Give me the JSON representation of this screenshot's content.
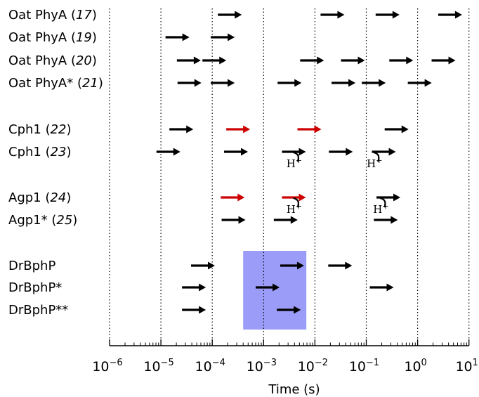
{
  "chart_data": {
    "type": "scatter",
    "xlabel": "Time (s)",
    "xscale": "log",
    "xlim": [
      1e-06,
      10
    ],
    "x_tick_labels": [
      {
        "base": "10",
        "exp": "−6"
      },
      {
        "base": "10",
        "exp": "−5"
      },
      {
        "base": "10",
        "exp": "−4"
      },
      {
        "base": "10",
        "exp": "−3"
      },
      {
        "base": "10",
        "exp": "−2"
      },
      {
        "base": "10",
        "exp": "−1"
      },
      {
        "base": "10",
        "exp": "0"
      },
      {
        "base": "10",
        "exp": "1"
      }
    ],
    "grid": "vertical dotted at decades",
    "colors": {
      "black": "#000000",
      "red": "#cc0000",
      "shade": "#9a9cf7"
    },
    "rows": [
      {
        "name": "Oat PhyA",
        "ref": "17",
        "arrows": [
          {
            "x": 0.00022,
            "color": "black"
          },
          {
            "x": 0.022,
            "color": "black"
          },
          {
            "x": 0.26,
            "color": "black"
          },
          {
            "x": 4.3,
            "color": "black"
          }
        ]
      },
      {
        "name": "Oat PhyA",
        "ref": "19",
        "arrows": [
          {
            "x": 2.1e-05,
            "color": "black"
          },
          {
            "x": 0.00016,
            "color": "black"
          }
        ]
      },
      {
        "name": "Oat PhyA",
        "ref": "20",
        "arrows": [
          {
            "x": 3.5e-05,
            "color": "black"
          },
          {
            "x": 0.00011,
            "color": "black"
          },
          {
            "x": 0.0088,
            "color": "black"
          },
          {
            "x": 0.055,
            "color": "black"
          },
          {
            "x": 0.48,
            "color": "black"
          },
          {
            "x": 3.2,
            "color": "black"
          }
        ]
      },
      {
        "name": "Oat PhyA*",
        "ref": "21",
        "arrows": [
          {
            "x": 3.6e-05,
            "color": "black"
          },
          {
            "x": 0.00016,
            "color": "black"
          },
          {
            "x": 0.0032,
            "color": "black"
          },
          {
            "x": 0.036,
            "color": "black"
          },
          {
            "x": 0.14,
            "color": "black"
          },
          {
            "x": 1.1,
            "color": "black"
          }
        ]
      },
      {
        "name": "Cph1",
        "ref": "22",
        "arrows": [
          {
            "x": 2.5e-05,
            "color": "black"
          },
          {
            "x": 0.00032,
            "color": "red"
          },
          {
            "x": 0.0078,
            "color": "red"
          },
          {
            "x": 0.39,
            "color": "black"
          }
        ]
      },
      {
        "name": "Cph1",
        "ref": "23",
        "arrows": [
          {
            "x": 1.4e-05,
            "color": "black"
          },
          {
            "x": 0.00029,
            "color": "black"
          },
          {
            "x": 0.0039,
            "color": "black"
          },
          {
            "x": 0.032,
            "color": "black"
          },
          {
            "x": 0.22,
            "color": "black"
          }
        ]
      },
      {
        "name": "Agp1",
        "ref": "24",
        "arrows": [
          {
            "x": 0.00025,
            "color": "red"
          },
          {
            "x": 0.0039,
            "color": "red"
          },
          {
            "x": 0.27,
            "color": "black"
          }
        ]
      },
      {
        "name": "Agp1*",
        "ref": "25",
        "arrows": [
          {
            "x": 0.00026,
            "color": "black"
          },
          {
            "x": 0.0027,
            "color": "black"
          },
          {
            "x": 0.24,
            "color": "black"
          }
        ]
      },
      {
        "name": "DrBphP",
        "ref": "",
        "arrows": [
          {
            "x": 6.6e-05,
            "color": "black"
          },
          {
            "x": 0.0036,
            "color": "black"
          },
          {
            "x": 0.031,
            "color": "black"
          }
        ]
      },
      {
        "name": "DrBphP*",
        "ref": "",
        "arrows": [
          {
            "x": 4.4e-05,
            "color": "black"
          },
          {
            "x": 0.0012,
            "color": "black"
          },
          {
            "x": 0.2,
            "color": "black"
          }
        ]
      },
      {
        "name": "DrBphP**",
        "ref": "",
        "arrows": [
          {
            "x": 4.4e-05,
            "color": "black"
          },
          {
            "x": 0.0031,
            "color": "black"
          }
        ]
      }
    ],
    "proton_annotations": [
      {
        "row": 5,
        "x": 0.0049,
        "text": "H",
        "sup": "+"
      },
      {
        "row": 5,
        "x": 0.18,
        "text": "H",
        "sup": "+"
      },
      {
        "row": 6,
        "x": 0.0049,
        "text": "H",
        "sup": "+"
      },
      {
        "row": 6,
        "x": 0.24,
        "text": "H",
        "sup": "+"
      }
    ],
    "shaded_region": {
      "x": [
        0.0004,
        0.0068
      ],
      "color": "shade"
    }
  }
}
